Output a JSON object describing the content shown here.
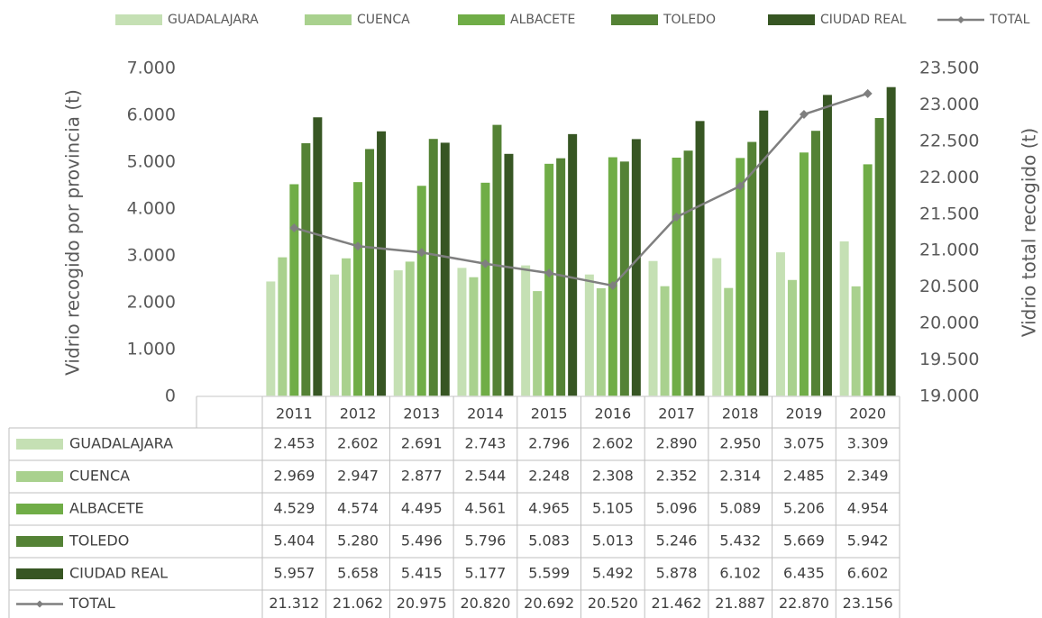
{
  "chart_data": {
    "type": "bar",
    "y_label": "Vidrio recogido por provincia (t)",
    "y2_label": "Vidrio total recogido (t)",
    "categories": [
      "2011",
      "2012",
      "2013",
      "2014",
      "2015",
      "2016",
      "2017",
      "2018",
      "2019",
      "2020"
    ],
    "ylim": [
      0,
      7000
    ],
    "yticks": [
      0,
      {
        "value": 1000,
        "label": "1.000"
      },
      {
        "value": 2000,
        "label": "2.000"
      },
      {
        "value": 3000,
        "label": "3.000"
      },
      {
        "value": 4000,
        "label": "4.000"
      },
      {
        "value": 5000,
        "label": "5.000"
      },
      {
        "value": 6000,
        "label": "6.000"
      },
      {
        "value": 7000,
        "label": "7.000"
      }
    ],
    "y2lim": [
      19000,
      23500
    ],
    "y2ticks": [
      {
        "value": 19000,
        "label": "19.000"
      },
      {
        "value": 19500,
        "label": "19.500"
      },
      {
        "value": 20000,
        "label": "20.000"
      },
      {
        "value": 20500,
        "label": "20.500"
      },
      {
        "value": 21000,
        "label": "21.000"
      },
      {
        "value": 21500,
        "label": "21.500"
      },
      {
        "value": 22000,
        "label": "22.000"
      },
      {
        "value": 22500,
        "label": "22.500"
      },
      {
        "value": 23000,
        "label": "23.000"
      },
      {
        "value": 23500,
        "label": "23.500"
      }
    ],
    "series": [
      {
        "name": "GUADALAJARA",
        "color": "#c5e0b4",
        "values": [
          2453,
          2602,
          2691,
          2743,
          2796,
          2602,
          2890,
          2950,
          3075,
          3309
        ],
        "value_labels": [
          "2.453",
          "2.602",
          "2.691",
          "2.743",
          "2.796",
          "2.602",
          "2.890",
          "2.950",
          "3.075",
          "3.309"
        ]
      },
      {
        "name": "CUENCA",
        "color": "#a9d18e",
        "values": [
          2969,
          2947,
          2877,
          2544,
          2248,
          2308,
          2352,
          2314,
          2485,
          2349
        ],
        "value_labels": [
          "2.969",
          "2.947",
          "2.877",
          "2.544",
          "2.248",
          "2.308",
          "2.352",
          "2.314",
          "2.485",
          "2.349"
        ]
      },
      {
        "name": "ALBACETE",
        "color": "#70ad47",
        "values": [
          4529,
          4574,
          4495,
          4561,
          4965,
          5105,
          5096,
          5089,
          5206,
          4954
        ],
        "value_labels": [
          "4.529",
          "4.574",
          "4.495",
          "4.561",
          "4.965",
          "5.105",
          "5.096",
          "5.089",
          "5.206",
          "4.954"
        ]
      },
      {
        "name": "TOLEDO",
        "color": "#548235",
        "values": [
          5404,
          5280,
          5496,
          5796,
          5083,
          5013,
          5246,
          5432,
          5669,
          5942
        ],
        "value_labels": [
          "5.404",
          "5.280",
          "5.496",
          "5.796",
          "5.083",
          "5.013",
          "5.246",
          "5.432",
          "5.669",
          "5.942"
        ]
      },
      {
        "name": "CIUDAD REAL",
        "color": "#375623",
        "values": [
          5957,
          5658,
          5415,
          5177,
          5599,
          5492,
          5878,
          6102,
          6435,
          6602
        ],
        "value_labels": [
          "5.957",
          "5.658",
          "5.415",
          "5.177",
          "5.599",
          "5.492",
          "5.878",
          "6.102",
          "6.435",
          "6.602"
        ]
      },
      {
        "name": "TOTAL",
        "color": "#7f7f7f",
        "axis": "y2",
        "type": "line",
        "values": [
          21312,
          21062,
          20975,
          20820,
          20692,
          20520,
          21462,
          21887,
          22870,
          23156
        ],
        "value_labels": [
          "21.312",
          "21.062",
          "20.975",
          "20.820",
          "20.692",
          "20.520",
          "21.462",
          "21.887",
          "22.870",
          "23.156"
        ]
      }
    ]
  }
}
